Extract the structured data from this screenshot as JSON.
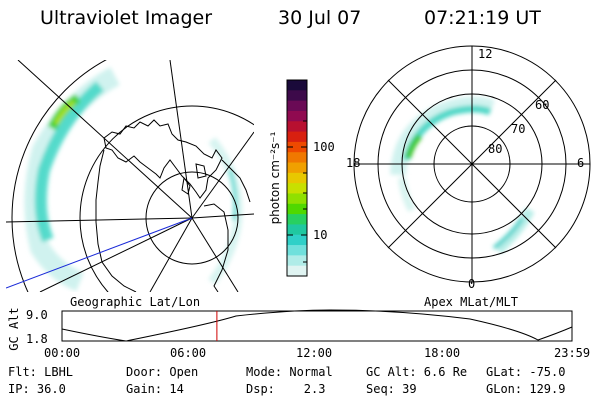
{
  "header": {
    "title": "Ultraviolet Imager",
    "date": "30 Jul 07",
    "time": "07:21:19 UT"
  },
  "left_panel": {
    "caption": "Geographic Lat/Lon"
  },
  "right_panel": {
    "caption": "Apex MLat/MLT",
    "mlt_labels": {
      "top": "12",
      "left": "18",
      "right": "6",
      "bottom": "0"
    },
    "lat_labels": [
      "60",
      "70",
      "80"
    ]
  },
  "colorbar": {
    "unit_label": "photon cm⁻²s⁻¹",
    "ticks": [
      "100",
      "10"
    ],
    "colors": [
      "#1a0a3a",
      "#3d0a4a",
      "#6a0a55",
      "#900a50",
      "#b81030",
      "#d82010",
      "#ee4a00",
      "#f07800",
      "#f0a000",
      "#e8c800",
      "#c8e000",
      "#90e000",
      "#50d800",
      "#28d060",
      "#20c8a0",
      "#30d0c8",
      "#70e0dc",
      "#b0ece8",
      "#e0f4f2"
    ]
  },
  "timeline": {
    "ylabel": "GC Alt",
    "yticks": [
      "9.0",
      "1.8"
    ],
    "xticks": [
      "00:00",
      "06:00",
      "12:00",
      "18:00",
      "23:59"
    ],
    "current_time_fraction": 0.3037,
    "marker_color": "#d00000"
  },
  "info": {
    "row1": [
      "Flt: LBHL",
      "Door: Open",
      "Mode: Normal",
      "GC Alt: 6.6 Re",
      "GLat: -75.0"
    ],
    "row2": [
      "IP: 36.0",
      "Gain: 14",
      "Dsp:    2.3",
      "Seq: 39",
      "GLon: 129.9"
    ]
  }
}
